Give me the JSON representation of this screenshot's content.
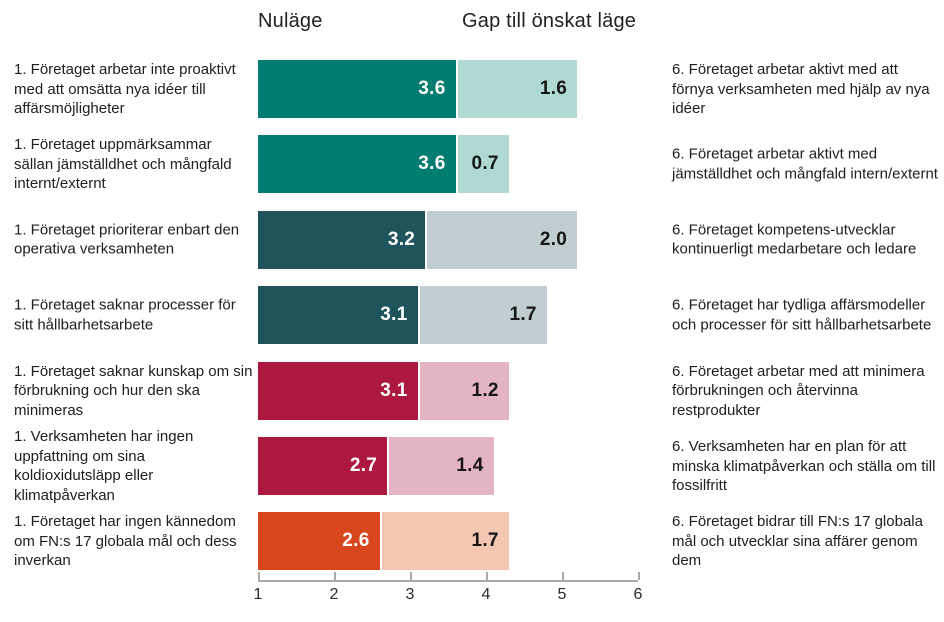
{
  "header": {
    "nulage_label": "Nuläge",
    "gap_label": "Gap till önskat läge"
  },
  "chart_data": {
    "type": "bar",
    "orientation": "horizontal",
    "stacked": true,
    "title": "",
    "series_names": [
      "Nuläge",
      "Gap till önskat läge"
    ],
    "x_axis": {
      "min": 1,
      "max": 6,
      "ticks": [
        1,
        2,
        3,
        4,
        5,
        6
      ],
      "grid": false
    },
    "value_label_decimal": ".",
    "rows": [
      {
        "left_label": "1. Företaget arbetar inte proaktivt med att omsätta nya idéer till affärsmöjligheter",
        "right_label": "6. Företaget arbetar aktivt med att förnya verksamheten med hjälp av nya idéer",
        "nulage": 3.6,
        "gap": 1.6,
        "nulage_color": "#007c70",
        "gap_color": "#b1d9d3"
      },
      {
        "left_label": "1. Företaget uppmärksammar sällan jämställdhet och mångfald internt/externt",
        "right_label": "6. Företaget arbetar aktivt med jämställdhet och mångfald intern/externt",
        "nulage": 3.6,
        "gap": 0.7,
        "nulage_color": "#007c70",
        "gap_color": "#b1d9d3"
      },
      {
        "left_label": "1. Företaget prioriterar enbart den operativa verksamheten",
        "right_label": "6. Företaget kompetens-utvecklar kontinuerligt medarbetare och ledare",
        "nulage": 3.2,
        "gap": 2.0,
        "nulage_color": "#1f545c",
        "gap_color": "#c1ced1"
      },
      {
        "left_label": "1. Företaget saknar processer för sitt hållbarhetsarbete",
        "right_label": "6. Företaget har tydliga affärsmodeller och processer för sitt hållbarhetsarbete",
        "nulage": 3.1,
        "gap": 1.7,
        "nulage_color": "#1f545c",
        "gap_color": "#c1ced1"
      },
      {
        "left_label": "1. Företaget saknar kunskap om sin förbrukning och hur den ska minimeras",
        "right_label": "6. Företaget arbetar med att minimera förbrukningen och återvinna restprodukter",
        "nulage": 3.1,
        "gap": 1.2,
        "nulage_color": "#ad1840",
        "gap_color": "#e3b4c2"
      },
      {
        "left_label": "1. Verksamheten har ingen uppfattning om sina koldioxidutsläpp eller klimatpåverkan",
        "right_label": "6. Verksamheten har en plan för att minska klimatpåverkan och ställa om till fossilfritt",
        "nulage": 2.7,
        "gap": 1.4,
        "nulage_color": "#ad1840",
        "gap_color": "#e3b4c2"
      },
      {
        "left_label": "1. Företaget har ingen kännedom om FN:s 17 globala mål och dess inverkan",
        "right_label": "6. Företaget bidrar till FN:s 17 globala mål och utvecklar sina affärer genom dem",
        "nulage": 2.6,
        "gap": 1.7,
        "nulage_color": "#d7461c",
        "gap_color": "#f4c7b2"
      }
    ]
  }
}
